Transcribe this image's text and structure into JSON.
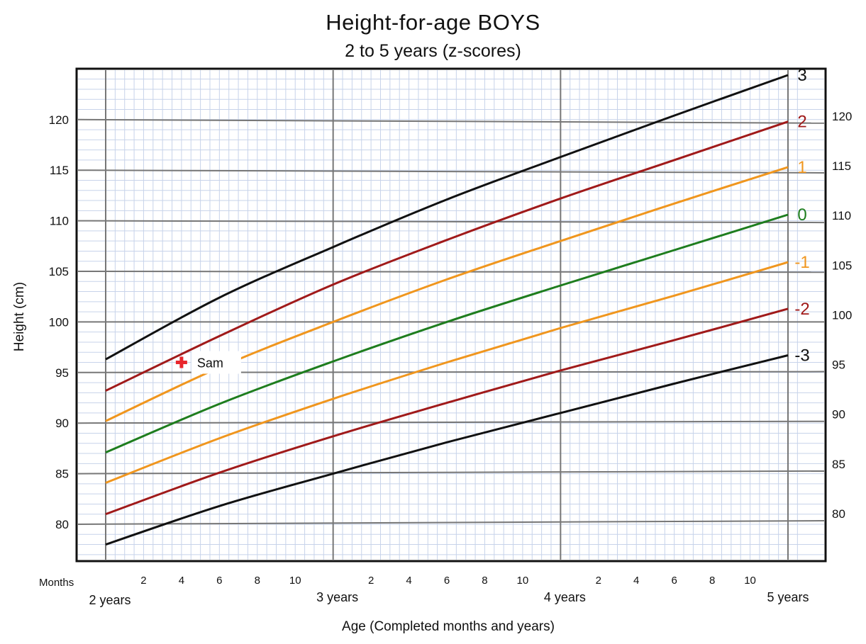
{
  "chart_data": {
    "type": "line",
    "title": "Height-for-age  BOYS",
    "subtitle": "2 to 5 years (z-scores)",
    "xlabel": "Age (Completed months and years)",
    "ylabel": "Height (cm)",
    "x_unit": "months",
    "xlim": [
      24,
      60
    ],
    "ylim": [
      76,
      125
    ],
    "y_ticks": [
      80,
      85,
      90,
      95,
      100,
      105,
      110,
      115,
      120
    ],
    "month_prefix": "Months",
    "month_ticks": [
      {
        "x": 26,
        "label": "2"
      },
      {
        "x": 28,
        "label": "4"
      },
      {
        "x": 30,
        "label": "6"
      },
      {
        "x": 32,
        "label": "8"
      },
      {
        "x": 34,
        "label": "10"
      },
      {
        "x": 38,
        "label": "2"
      },
      {
        "x": 40,
        "label": "4"
      },
      {
        "x": 42,
        "label": "6"
      },
      {
        "x": 44,
        "label": "8"
      },
      {
        "x": 46,
        "label": "10"
      },
      {
        "x": 50,
        "label": "2"
      },
      {
        "x": 52,
        "label": "4"
      },
      {
        "x": 54,
        "label": "6"
      },
      {
        "x": 56,
        "label": "8"
      },
      {
        "x": 58,
        "label": "10"
      }
    ],
    "year_ticks": [
      {
        "x": 24,
        "label": "2 years"
      },
      {
        "x": 36,
        "label": "3 years"
      },
      {
        "x": 48,
        "label": "4 years"
      },
      {
        "x": 60,
        "label": "5 years"
      }
    ],
    "series": [
      {
        "name": "3",
        "color": "#111111",
        "x": [
          24,
          30,
          36,
          42,
          48,
          54,
          60
        ],
        "values": [
          96.3,
          102.4,
          107.4,
          112.1,
          116.3,
          120.4,
          124.4
        ]
      },
      {
        "name": "2",
        "color": "#a01a1a",
        "x": [
          24,
          30,
          36,
          42,
          48,
          54,
          60
        ],
        "values": [
          93.2,
          98.6,
          103.7,
          108.1,
          112.2,
          116.0,
          119.8
        ]
      },
      {
        "name": "1",
        "color": "#f0961e",
        "x": [
          24,
          30,
          36,
          42,
          48,
          54,
          60
        ],
        "values": [
          90.2,
          95.5,
          100.0,
          104.2,
          108.0,
          111.7,
          115.3
        ]
      },
      {
        "name": "0",
        "color": "#1e7d1e",
        "x": [
          24,
          30,
          36,
          42,
          48,
          54,
          60
        ],
        "values": [
          87.1,
          91.9,
          96.1,
          100.0,
          103.6,
          107.1,
          110.6
        ]
      },
      {
        "name": "-1",
        "color": "#f0961e",
        "x": [
          24,
          30,
          36,
          42,
          48,
          54,
          60
        ],
        "values": [
          84.1,
          88.5,
          92.4,
          96.0,
          99.4,
          102.6,
          105.9
        ]
      },
      {
        "name": "-2",
        "color": "#a01a1a",
        "x": [
          24,
          30,
          36,
          42,
          48,
          54,
          60
        ],
        "values": [
          81.0,
          85.1,
          88.7,
          92.0,
          95.2,
          98.2,
          101.3
        ]
      },
      {
        "name": "-3",
        "color": "#111111",
        "x": [
          24,
          30,
          36,
          42,
          48,
          54,
          60
        ],
        "values": [
          78.0,
          81.8,
          85.0,
          88.1,
          91.0,
          93.9,
          96.7
        ]
      }
    ],
    "points": [
      {
        "label": "Sam",
        "x": 28,
        "y": 96,
        "color": "#e8262c"
      }
    ],
    "grid": true
  }
}
